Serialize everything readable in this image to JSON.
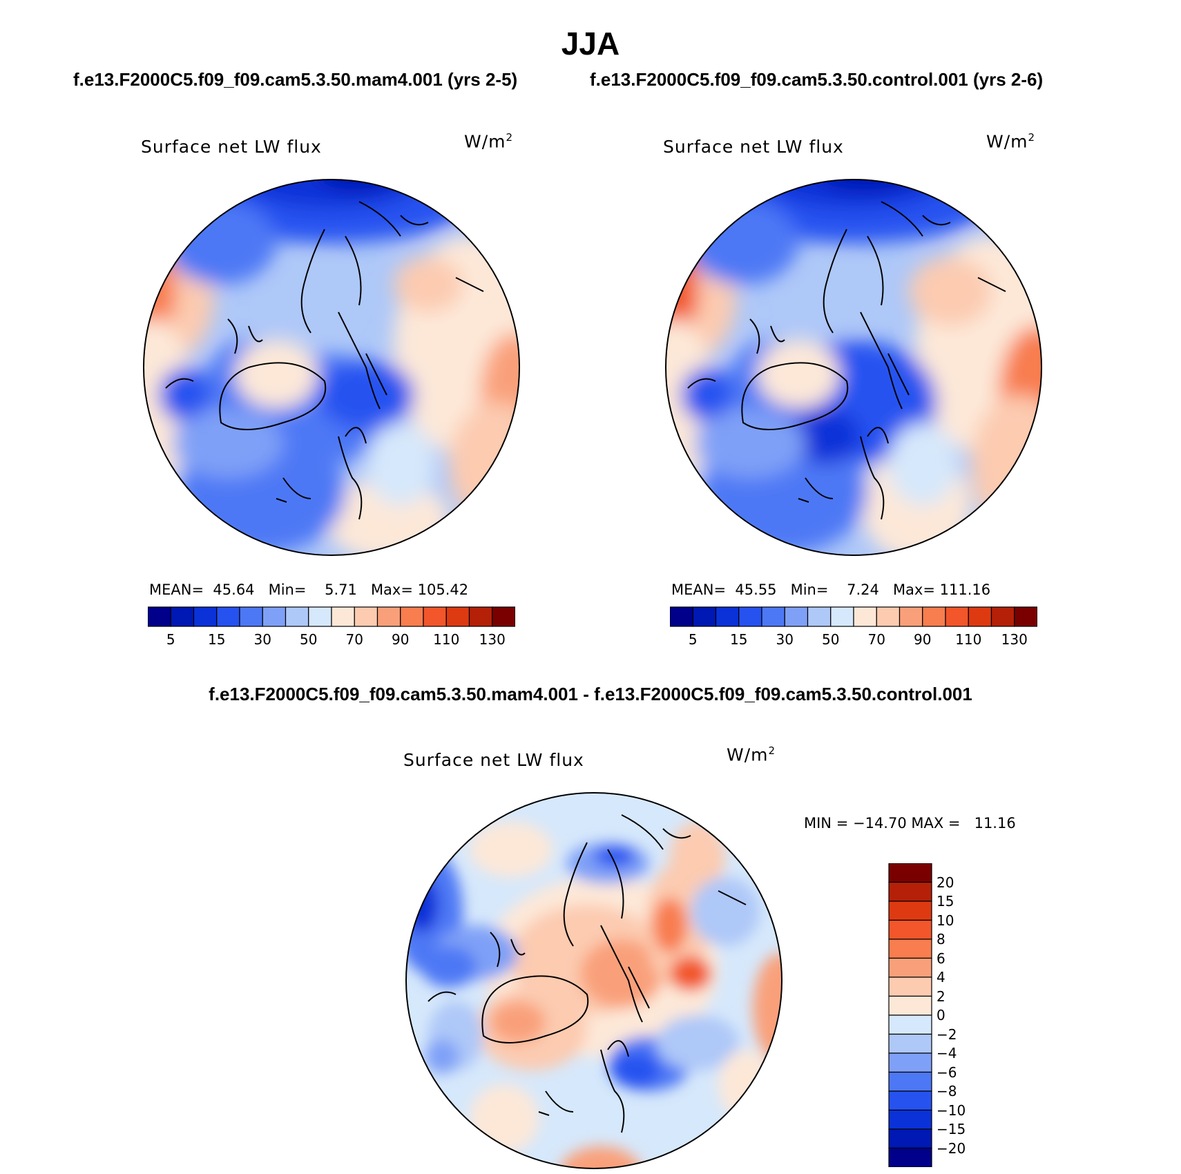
{
  "figure": {
    "title": "JJA",
    "case_a": "f.e13.F2000C5.f09_f09.cam5.3.50.mam4.001 (yrs 2-5)",
    "case_b": "f.e13.F2000C5.f09_f09.cam5.3.50.control.001 (yrs 2-6)",
    "diff_heading": "f.e13.F2000C5.f09_f09.cam5.3.50.mam4.001 - f.e13.F2000C5.f09_f09.cam5.3.50.control.001"
  },
  "chart_data": [
    {
      "type": "heatmap",
      "projection": "north-polar-stereographic",
      "title": "Surface net LW flux",
      "units_base": "W/m",
      "units_exp": "2",
      "stats": {
        "mean_label": "MEAN=",
        "mean": "45.64",
        "min_label": "Min=",
        "min": "5.71",
        "max_label": "Max=",
        "max": "105.42"
      },
      "colorbar": {
        "orientation": "horizontal",
        "colors": [
          "#00008b",
          "#0018b4",
          "#0a32d8",
          "#2652f0",
          "#4d78f5",
          "#7fa0f7",
          "#aec8f8",
          "#d6e8fb",
          "#fde8d8",
          "#fccbb0",
          "#f9a07a",
          "#f87d4f",
          "#f2562a",
          "#dd3a12",
          "#b52008",
          "#7a0000"
        ],
        "tick_labels": [
          "5",
          "15",
          "30",
          "50",
          "70",
          "90",
          "110",
          "130"
        ]
      }
    },
    {
      "type": "heatmap",
      "projection": "north-polar-stereographic",
      "title": "Surface net LW flux",
      "units_base": "W/m",
      "units_exp": "2",
      "stats": {
        "mean_label": "MEAN=",
        "mean": "45.55",
        "min_label": "Min=",
        "min": "7.24",
        "max_label": "Max=",
        "max": "111.16"
      },
      "colorbar": {
        "orientation": "horizontal",
        "colors": [
          "#00008b",
          "#0018b4",
          "#0a32d8",
          "#2652f0",
          "#4d78f5",
          "#7fa0f7",
          "#aec8f8",
          "#d6e8fb",
          "#fde8d8",
          "#fccbb0",
          "#f9a07a",
          "#f87d4f",
          "#f2562a",
          "#dd3a12",
          "#b52008",
          "#7a0000"
        ],
        "tick_labels": [
          "5",
          "15",
          "30",
          "50",
          "70",
          "90",
          "110",
          "130"
        ]
      }
    },
    {
      "type": "heatmap",
      "projection": "north-polar-stereographic",
      "title": "Surface net LW flux",
      "units_base": "W/m",
      "units_exp": "2",
      "stats": {
        "min_label": "MIN =",
        "min": "−14.70",
        "max_label": "MAX =",
        "max": "11.16"
      },
      "colorbar": {
        "orientation": "vertical",
        "colors_top_to_bottom": [
          "#7a0000",
          "#b52008",
          "#dd3a12",
          "#f2562a",
          "#f87d4f",
          "#f9a07a",
          "#fccbb0",
          "#fde8d8",
          "#d6e8fb",
          "#aec8f8",
          "#7fa0f7",
          "#4d78f5",
          "#2652f0",
          "#0a32d8",
          "#0018b4",
          "#00008b"
        ],
        "tick_labels": [
          "20",
          "15",
          "10",
          "8",
          "6",
          "4",
          "2",
          "0",
          "−2",
          "−4",
          "−6",
          "−8",
          "−10",
          "−15",
          "−20"
        ]
      }
    }
  ]
}
